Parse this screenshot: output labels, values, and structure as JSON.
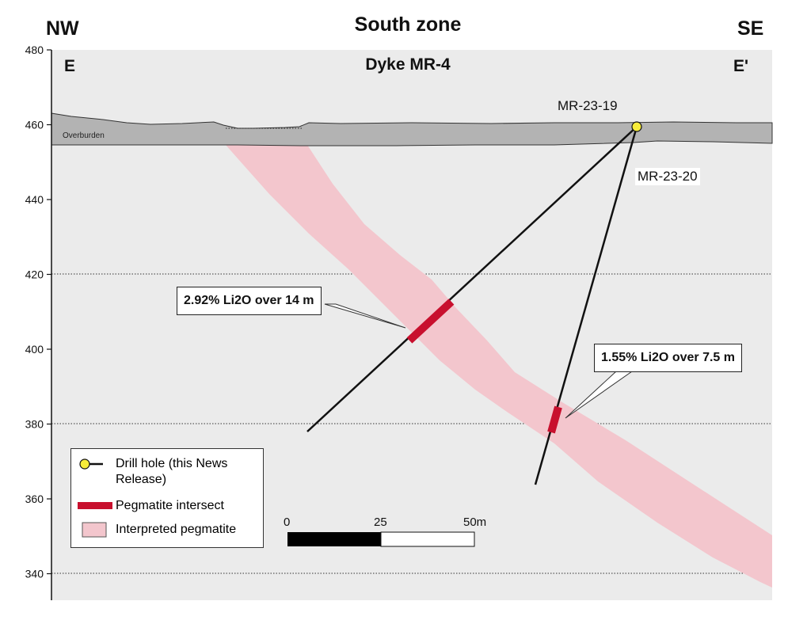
{
  "title": "South zone",
  "subtitle": "Dyke MR-4",
  "direction_left": "NW",
  "direction_right": "SE",
  "section_left": "E",
  "section_right": "E'",
  "overburden_label": "Overburden",
  "y_axis": {
    "ticks": [
      480,
      460,
      440,
      420,
      400,
      380,
      360,
      340
    ],
    "range": [
      336,
      480
    ]
  },
  "drill_holes": [
    {
      "name": "MR-23-19"
    },
    {
      "name": "MR-23-20"
    }
  ],
  "intersects": [
    {
      "text": "2.92% Li2O over 14 m"
    },
    {
      "text": "1.55% Li2O over 7.5 m"
    }
  ],
  "legend": {
    "drill_hole": "Drill hole (this News Release)",
    "pegmatite_intersect": "Pegmatite intersect",
    "interpreted_pegmatite": "Interpreted pegmatite"
  },
  "scale_bar": {
    "labels": [
      "0",
      "25",
      "50m"
    ]
  },
  "colors": {
    "plot_background": "#ebebeb",
    "overburden": "#b3b3b3",
    "interpreted_pegmatite": "#f3c6cd",
    "pegmatite_intersect": "#c8102e",
    "drill_collar": "#f7ec3a"
  }
}
